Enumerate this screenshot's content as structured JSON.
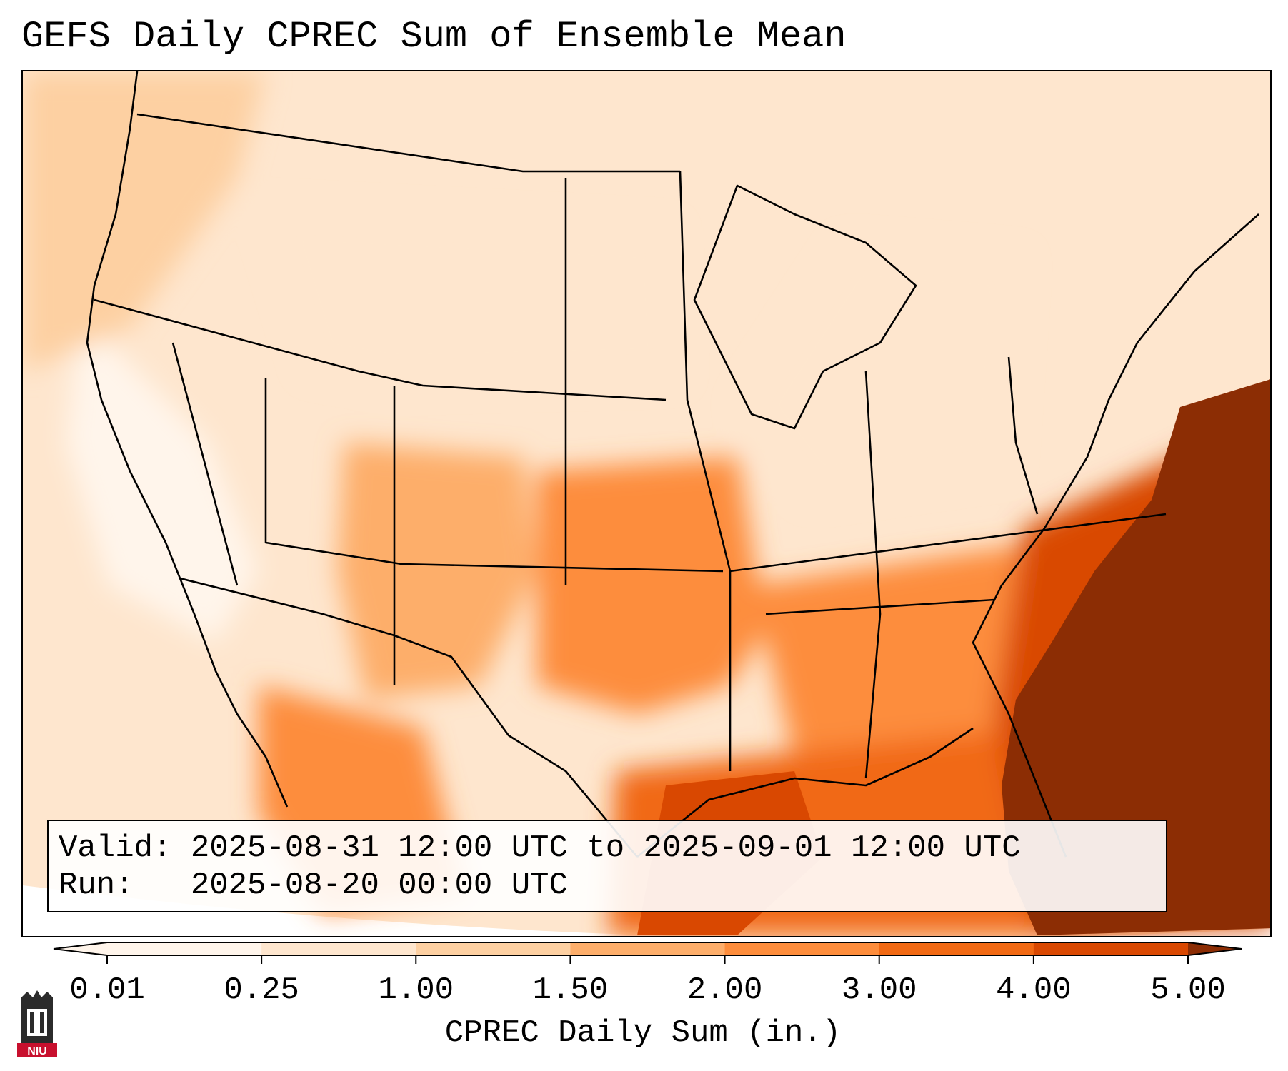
{
  "title": "GEFS Daily CPREC Sum of Ensemble Mean",
  "info": {
    "valid_label": "Valid:",
    "valid_value": "2025-08-31 12:00 UTC to 2025-09-01 12:00 UTC",
    "run_label": "Run:",
    "run_value": "2025-08-20 00:00 UTC"
  },
  "colorbar": {
    "label": "CPREC Daily Sum (in.)",
    "ticks": [
      "0.01",
      "0.25",
      "1.00",
      "1.50",
      "2.00",
      "3.00",
      "4.00",
      "5.00"
    ],
    "colors": [
      "#fff5eb",
      "#fee6ce",
      "#fdd0a2",
      "#fdae6b",
      "#fd8d3c",
      "#f16913",
      "#d94801",
      "#8c2d04"
    ],
    "extend": "both"
  },
  "logo": {
    "text": "NIU",
    "colors": {
      "tower": "#2b2b2b",
      "banner": "#c8102e"
    }
  },
  "map": {
    "region": "CONUS",
    "ocean_color": "#ffffff",
    "fill_colors": [
      "#fff5eb",
      "#fee6ce",
      "#fdd0a2",
      "#fdae6b",
      "#fd8d3c",
      "#f16913",
      "#d94801",
      "#8c2d04"
    ]
  }
}
